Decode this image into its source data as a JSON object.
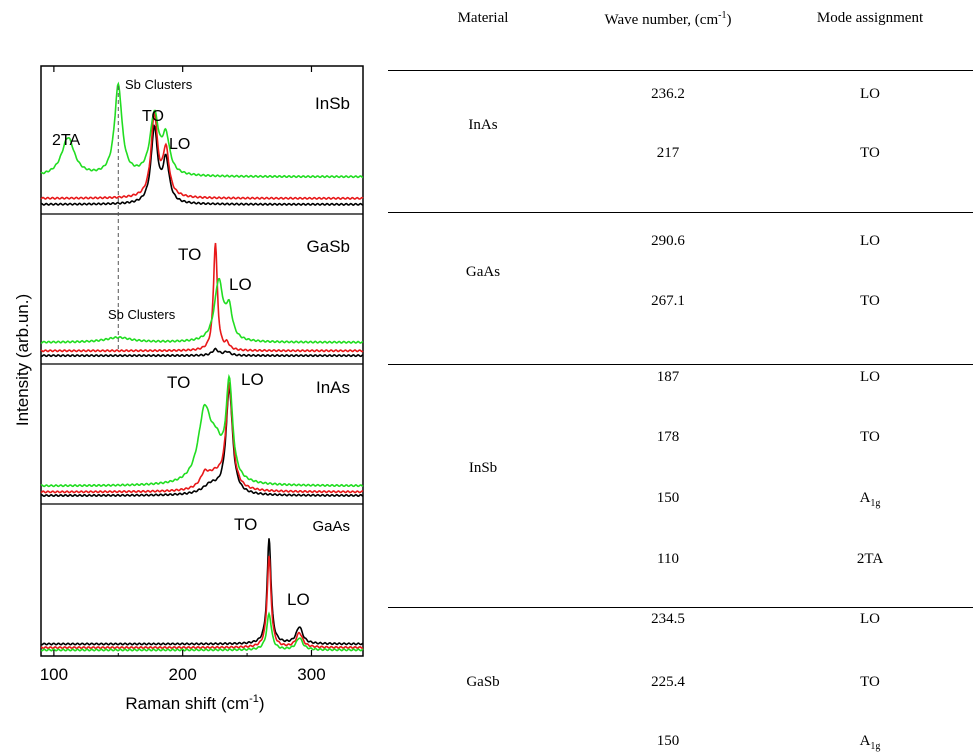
{
  "chart_data": {
    "type": "line",
    "xlabel": "Raman shift (cm",
    "xlabel_sup": "-1",
    "xlabel_close": ")",
    "ylabel": "Intensity (arb.un.)",
    "xlim": [
      90,
      340
    ],
    "x_ticks": [
      100,
      200,
      300
    ],
    "series_colors": {
      "black": "#000000",
      "red": "#e8191a",
      "green": "#22dd22"
    },
    "panels": [
      {
        "name": "InSb",
        "labels": [
          "Sb Clusters",
          "2TA",
          "TO",
          "LO"
        ],
        "curves": {
          "black": {
            "base": 0.03,
            "peaks": [
              [
                178,
                0.62,
                3
              ],
              [
                187,
                0.35,
                3
              ]
            ]
          },
          "red": {
            "base": 0.08,
            "peaks": [
              [
                178,
                0.68,
                3
              ],
              [
                187,
                0.38,
                3
              ]
            ]
          },
          "green": {
            "base": 0.26,
            "peaks": [
              [
                111,
                0.32,
                6
              ],
              [
                150,
                0.75,
                3.5
              ],
              [
                178,
                0.5,
                4
              ],
              [
                187,
                0.3,
                3.5
              ]
            ]
          }
        }
      },
      {
        "name": "GaSb",
        "labels": [
          "TO",
          "LO",
          "Sb Clusters"
        ],
        "curves": {
          "black": {
            "base": 0.02,
            "peaks": [
              [
                225.4,
                0.05,
                3
              ],
              [
                234.5,
                0.03,
                3
              ]
            ]
          },
          "red": {
            "base": 0.06,
            "peaks": [
              [
                225.4,
                0.9,
                1.8
              ],
              [
                234.5,
                0.05,
                2
              ]
            ]
          },
          "green": {
            "base": 0.13,
            "peaks": [
              [
                150,
                0.04,
                12
              ],
              [
                228,
                0.5,
                4
              ],
              [
                236,
                0.25,
                3
              ]
            ]
          }
        }
      },
      {
        "name": "InAs",
        "labels": [
          "TO",
          "LO"
        ],
        "curves": {
          "black": {
            "base": 0.02,
            "peaks": [
              [
                236.2,
                0.88,
                3
              ],
              [
                222,
                0.08,
                8
              ]
            ]
          },
          "red": {
            "base": 0.05,
            "peaks": [
              [
                236.2,
                0.86,
                3
              ],
              [
                217,
                0.1,
                4
              ],
              [
                225,
                0.12,
                8
              ]
            ]
          },
          "green": {
            "base": 0.1,
            "peaks": [
              [
                217,
                0.58,
                6
              ],
              [
                236.2,
                0.8,
                3
              ],
              [
                226,
                0.25,
                6
              ]
            ]
          }
        }
      },
      {
        "name": "GaAs",
        "labels": [
          "TO",
          "LO"
        ],
        "curves": {
          "black": {
            "base": 0.05,
            "peaks": [
              [
                267.1,
                0.88,
                1.8
              ],
              [
                290.6,
                0.14,
                3
              ]
            ]
          },
          "red": {
            "base": 0.02,
            "peaks": [
              [
                267.1,
                0.76,
                1.8
              ],
              [
                290.6,
                0.12,
                3
              ]
            ]
          },
          "green": {
            "base": 0.0,
            "peaks": [
              [
                267.1,
                0.3,
                2.2
              ],
              [
                290.6,
                0.1,
                3
              ]
            ]
          }
        }
      }
    ],
    "table": {
      "headers": [
        "Material",
        "Wave number, (cm",
        "-1",
        ")",
        "Mode assignment"
      ],
      "groups": [
        {
          "material": "InAs",
          "rows": [
            [
              "236.2",
              "LO"
            ],
            [
              "217",
              "TO"
            ]
          ]
        },
        {
          "material": "GaAs",
          "rows": [
            [
              "290.6",
              "LO"
            ],
            [
              "267.1",
              "TO"
            ]
          ]
        },
        {
          "material": "InSb",
          "rows": [
            [
              "187",
              "LO"
            ],
            [
              "178",
              "TO"
            ],
            [
              "150",
              "A",
              "1g"
            ],
            [
              "110",
              "2TA"
            ]
          ]
        },
        {
          "material": "GaSb",
          "rows": [
            [
              "234.5",
              "LO"
            ],
            [
              "225.4",
              "TO"
            ],
            [
              "150",
              "A",
              "1g"
            ]
          ]
        }
      ]
    }
  }
}
